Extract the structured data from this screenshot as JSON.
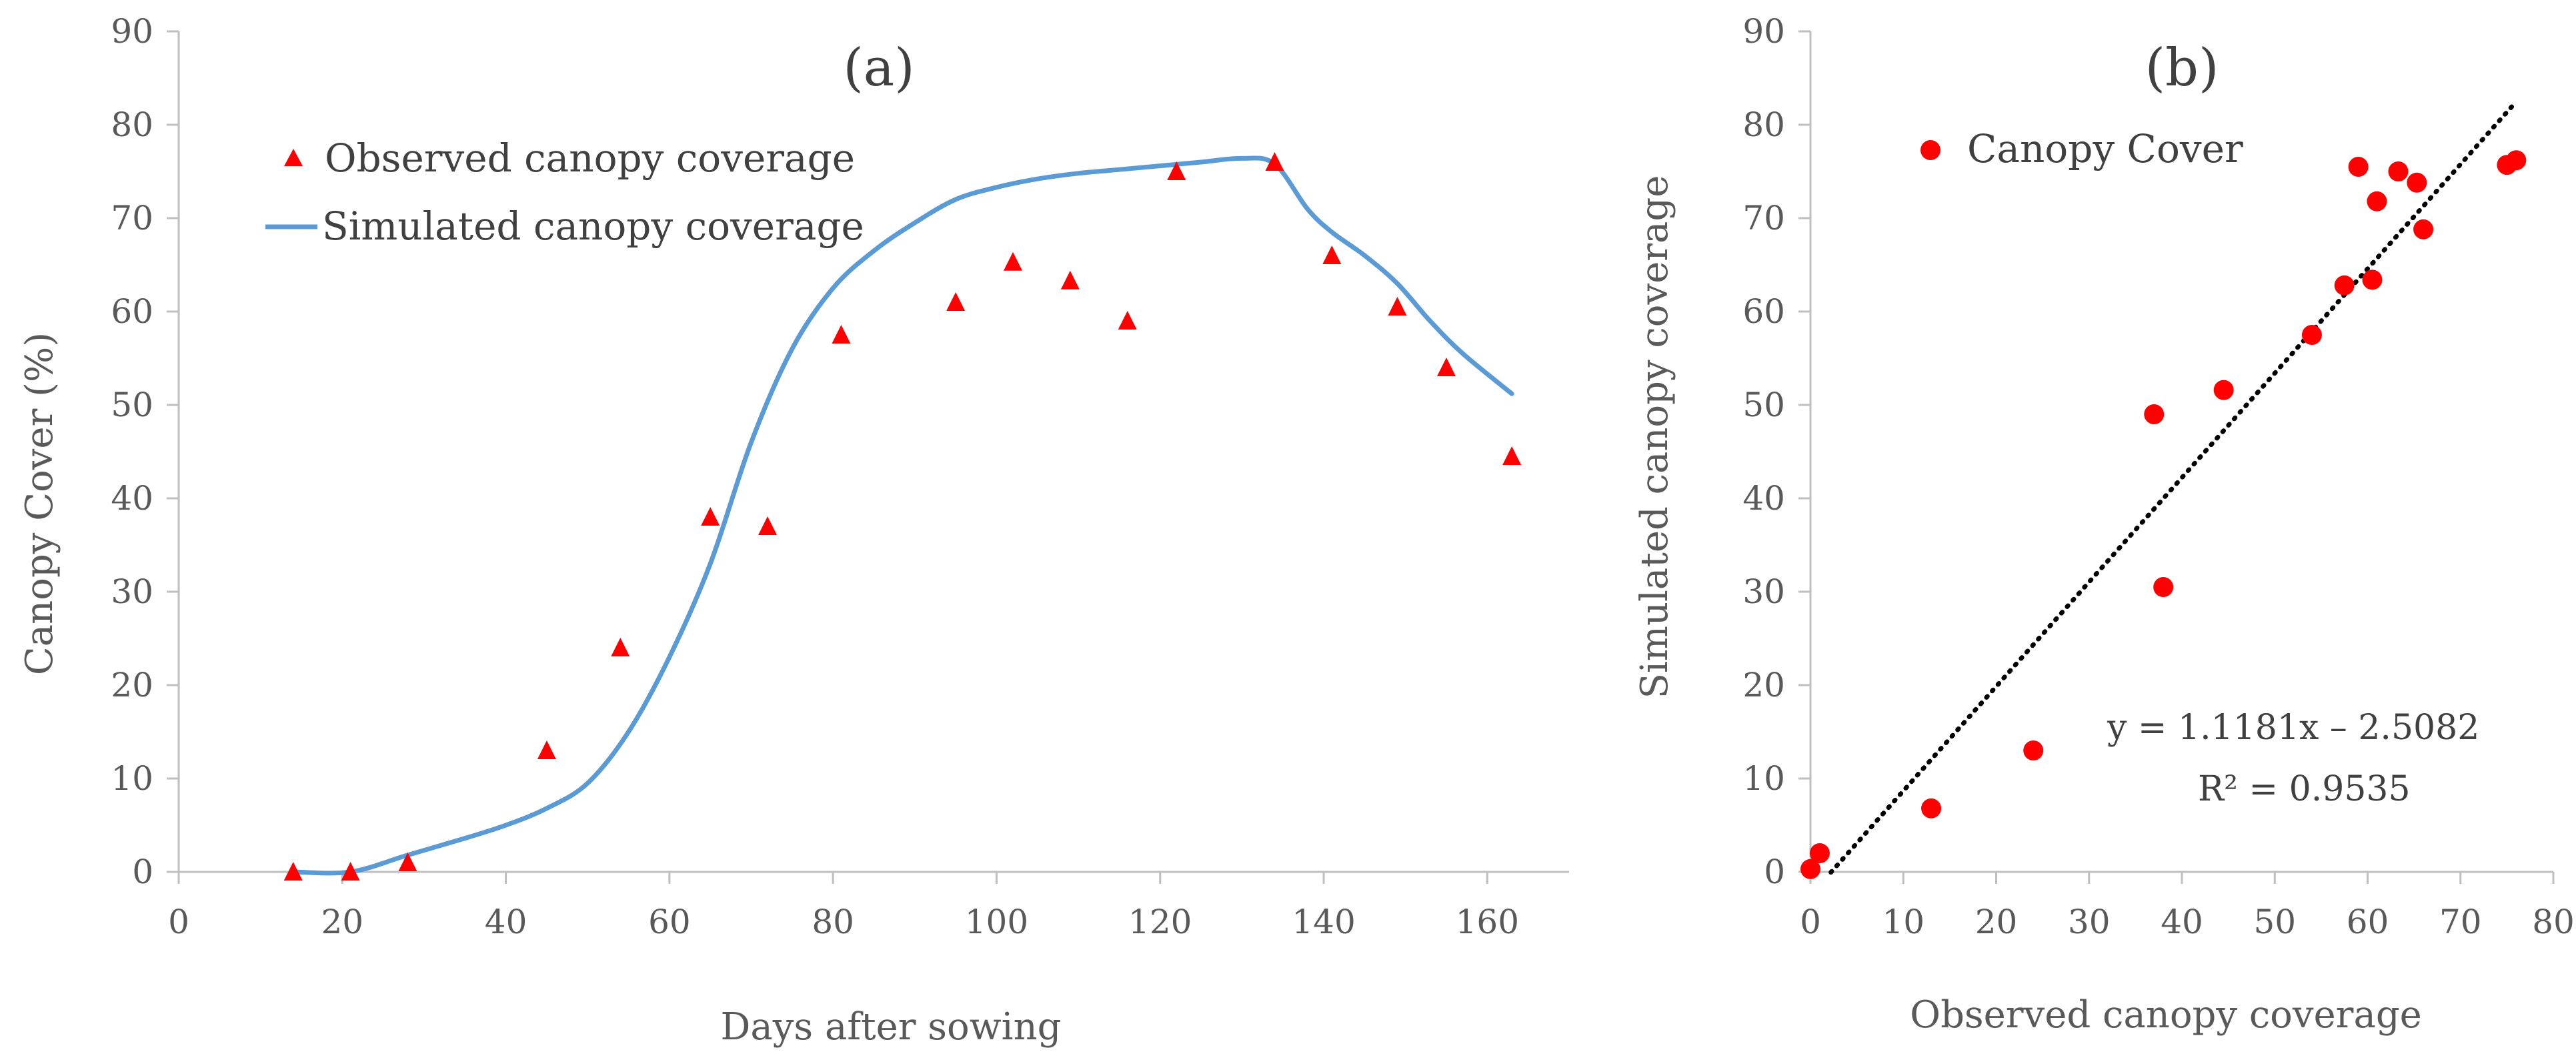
{
  "chart_data": [
    {
      "type": "scatter+line",
      "panel_label": "(a)",
      "xlabel": "Days after sowing",
      "ylabel": "Canopy Cover (%)",
      "xlim": [
        0,
        170
      ],
      "ylim": [
        0,
        90
      ],
      "xticks": [
        "0",
        "20",
        "40",
        "60",
        "80",
        "100",
        "120",
        "140",
        "160"
      ],
      "yticks": [
        "0",
        "10",
        "20",
        "30",
        "40",
        "50",
        "60",
        "70",
        "80",
        "90"
      ],
      "grid": false,
      "legend_position": "top-left",
      "observed": {
        "name": "Observed canopy coverage",
        "marker": "triangle",
        "color": "#ff0000",
        "x": [
          14,
          21,
          28,
          45,
          54,
          65,
          72,
          81,
          95,
          102,
          109,
          116,
          122,
          134,
          141,
          149,
          155,
          163
        ],
        "y": [
          0,
          0,
          1,
          13,
          24,
          38,
          37,
          57.5,
          61,
          65.3,
          63.3,
          59,
          75,
          76,
          66,
          60.5,
          54,
          44.5
        ]
      },
      "simulated": {
        "name": "Simulated canopy coverage",
        "color": "#5b9bd5",
        "x": [
          14,
          21,
          28,
          35,
          40,
          45,
          50,
          55,
          60,
          65,
          70,
          75,
          80,
          85,
          90,
          95,
          100,
          105,
          110,
          115,
          120,
          125,
          130,
          134,
          138,
          141,
          145,
          149,
          153,
          157,
          163
        ],
        "y": [
          0,
          0,
          1.8,
          3.6,
          5,
          6.8,
          9.5,
          15,
          23,
          33,
          46,
          56,
          62.5,
          66.5,
          69.5,
          72,
          73.3,
          74.2,
          74.8,
          75.2,
          75.6,
          76,
          76.4,
          75.8,
          71,
          68.5,
          66,
          63,
          59,
          55.5,
          51.2
        ]
      }
    },
    {
      "type": "scatter",
      "panel_label": "(b)",
      "xlabel": "Observed canopy coverage",
      "ylabel": "Simulated canopy coverage",
      "xlim": [
        0,
        80
      ],
      "ylim": [
        0,
        90
      ],
      "xticks": [
        "0",
        "10",
        "20",
        "30",
        "40",
        "50",
        "60",
        "70",
        "80"
      ],
      "yticks": [
        "0",
        "10",
        "20",
        "30",
        "40",
        "50",
        "60",
        "70",
        "80",
        "90"
      ],
      "grid": false,
      "legend_position": "top-left",
      "series": {
        "name": "Canopy Cover",
        "marker": "circle",
        "color": "#ff0000",
        "x": [
          0,
          1,
          13,
          24,
          37,
          38,
          44.5,
          54,
          57.5,
          59,
          60.5,
          61,
          63.3,
          65.3,
          66,
          75,
          76
        ],
        "y": [
          0.3,
          2,
          6.8,
          13,
          49,
          30.5,
          51.6,
          57.5,
          62.8,
          75.5,
          63.4,
          71.8,
          75,
          73.8,
          68.8,
          75.7,
          76.2
        ]
      },
      "trendline": {
        "style": "dotted",
        "color": "#000000",
        "slope": 1.1181,
        "intercept": -2.5082,
        "x_range": [
          2.2,
          76
        ]
      },
      "equation": "y = 1.1181x –  2.5082",
      "r_squared": "R² = 0.9535"
    }
  ]
}
